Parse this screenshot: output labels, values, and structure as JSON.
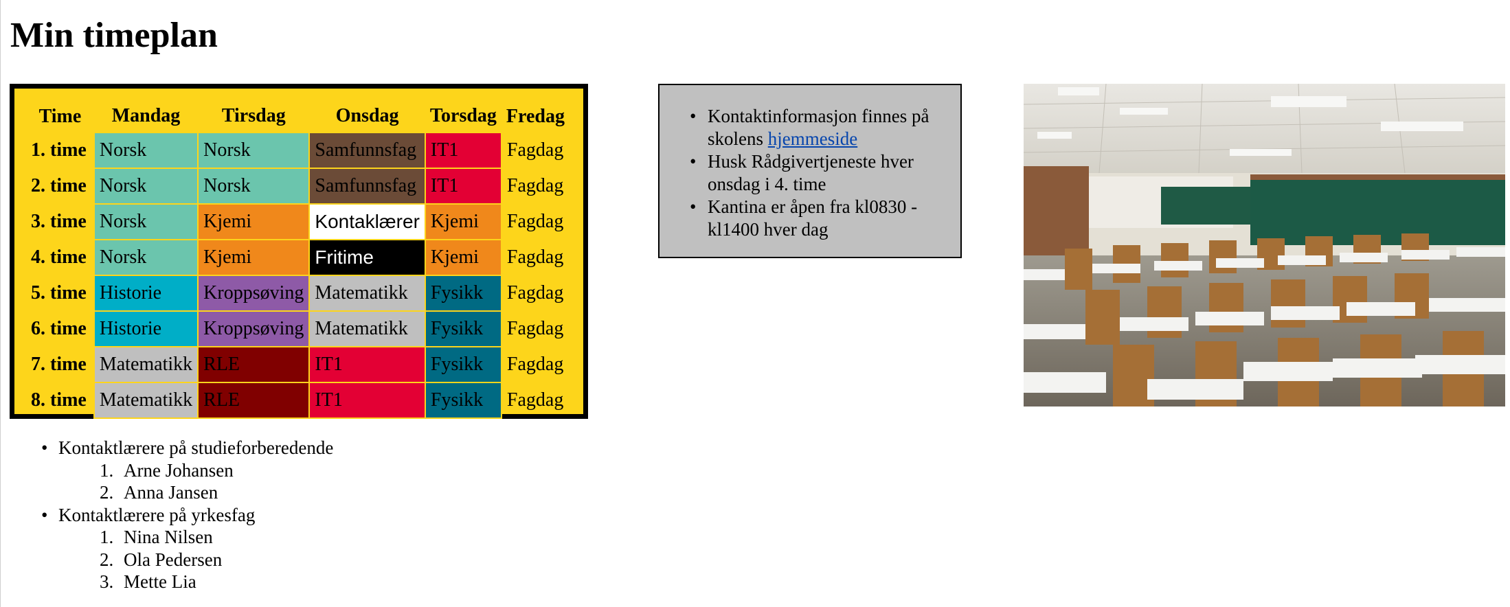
{
  "page": {
    "title": "Min timeplan"
  },
  "timetable": {
    "headers": [
      "Time",
      "Mandag",
      "Tirsdag",
      "Onsdag",
      "Torsdag",
      "Fredag"
    ],
    "rows": [
      {
        "hour": "1. time",
        "cells": [
          {
            "text": "Norsk",
            "cls": "c-norsk"
          },
          {
            "text": "Norsk",
            "cls": "c-norsk"
          },
          {
            "text": "Samfunnsfag",
            "cls": "c-samf"
          },
          {
            "text": "IT1",
            "cls": "c-it1"
          },
          {
            "text": "Fagdag",
            "cls": "fr"
          }
        ]
      },
      {
        "hour": "2. time",
        "cells": [
          {
            "text": "Norsk",
            "cls": "c-norsk"
          },
          {
            "text": "Norsk",
            "cls": "c-norsk"
          },
          {
            "text": "Samfunnsfag",
            "cls": "c-samf"
          },
          {
            "text": "IT1",
            "cls": "c-it1"
          },
          {
            "text": "Fagdag",
            "cls": "fr"
          }
        ]
      },
      {
        "hour": "3. time",
        "cells": [
          {
            "text": "Norsk",
            "cls": "c-norsk"
          },
          {
            "text": "Kjemi",
            "cls": "c-kjemi"
          },
          {
            "text": "Kontaklærer",
            "cls": "c-kontakt"
          },
          {
            "text": "Kjemi",
            "cls": "c-kjemi"
          },
          {
            "text": "Fagdag",
            "cls": "fr"
          }
        ]
      },
      {
        "hour": "4. time",
        "cells": [
          {
            "text": "Norsk",
            "cls": "c-norsk"
          },
          {
            "text": "Kjemi",
            "cls": "c-kjemi"
          },
          {
            "text": "Fritime",
            "cls": "c-fri"
          },
          {
            "text": "Kjemi",
            "cls": "c-kjemi"
          },
          {
            "text": "Fagdag",
            "cls": "fr"
          }
        ]
      },
      {
        "hour": "5. time",
        "cells": [
          {
            "text": "Historie",
            "cls": "c-hist"
          },
          {
            "text": "Kroppsøving",
            "cls": "c-kropp"
          },
          {
            "text": "Matematikk",
            "cls": "c-mat"
          },
          {
            "text": "Fysikk",
            "cls": "c-fys"
          },
          {
            "text": "Fagdag",
            "cls": "fr"
          }
        ]
      },
      {
        "hour": "6. time",
        "cells": [
          {
            "text": "Historie",
            "cls": "c-hist"
          },
          {
            "text": "Kroppsøving",
            "cls": "c-kropp"
          },
          {
            "text": "Matematikk",
            "cls": "c-mat"
          },
          {
            "text": "Fysikk",
            "cls": "c-fys"
          },
          {
            "text": "Fagdag",
            "cls": "fr"
          }
        ]
      },
      {
        "hour": "7. time",
        "cells": [
          {
            "text": "Matematikk",
            "cls": "c-mat"
          },
          {
            "text": "RLE",
            "cls": "c-rle"
          },
          {
            "text": "IT1",
            "cls": "c-it1"
          },
          {
            "text": "Fysikk",
            "cls": "c-fys"
          },
          {
            "text": "Fagdag",
            "cls": "fr"
          }
        ]
      },
      {
        "hour": "8. time",
        "cells": [
          {
            "text": "Matematikk",
            "cls": "c-mat"
          },
          {
            "text": "RLE",
            "cls": "c-rle"
          },
          {
            "text": "IT1",
            "cls": "c-it1"
          },
          {
            "text": "Fysikk",
            "cls": "c-fys"
          },
          {
            "text": "Fagdag",
            "cls": "fr"
          }
        ]
      }
    ]
  },
  "info": {
    "item1_prefix": "Kontaktinformasjon finnes på skolens",
    "item1_link": "hjemmeside",
    "item2": "Husk Rådgivertjeneste hver onsdag i 4. time",
    "item3": "Kantina er åpen fra kl0830 - kl1400 hver dag"
  },
  "contacts": {
    "groups": [
      {
        "label": "Kontaktlærere på studieforberedende",
        "names": [
          "Arne Johansen",
          "Anna Jansen"
        ]
      },
      {
        "label": "Kontaktlærere på yrkesfag",
        "names": [
          "Nina Nilsen",
          "Ola Pedersen",
          "Mette Lia"
        ]
      }
    ]
  },
  "colors": {
    "table_background": "#fdd51b",
    "norsk": "#6bc5ad",
    "samfunnsfag": "#6b4b37",
    "it1": "#e30034",
    "kjemi": "#f0881b",
    "historie": "#00aec7",
    "kroppsoving": "#8e5aa7",
    "matematikk": "#bfbfbf",
    "fysikk": "#006a83",
    "rle": "#800000",
    "fritime": "#000000",
    "info_box": "#c0c0c0",
    "link": "#0645ad"
  },
  "images": {
    "photo_subject": "empty-classroom"
  }
}
